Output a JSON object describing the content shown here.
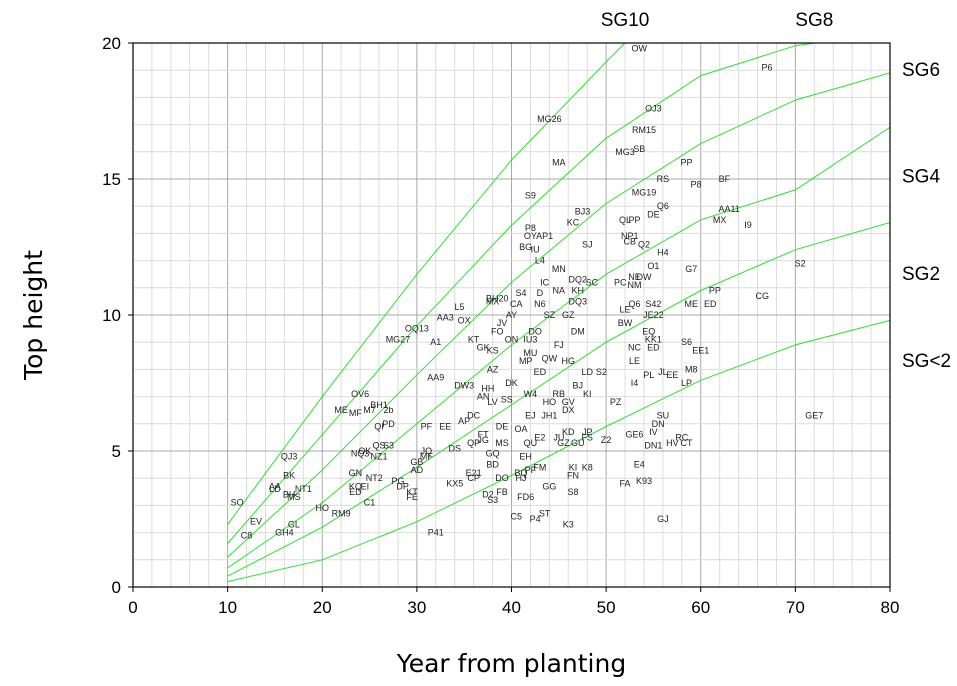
{
  "chart_data": {
    "type": "scatter",
    "xlabel": "Year from planting",
    "ylabel": "Top height",
    "xlim": [
      0,
      80
    ],
    "ylim": [
      0,
      20
    ],
    "x_ticks": [
      "0",
      "10",
      "20",
      "30",
      "40",
      "50",
      "60",
      "70",
      "80"
    ],
    "y_ticks": [
      "0",
      "5",
      "10",
      "15",
      "20"
    ],
    "grid": true,
    "series_color": "#33dd33",
    "curves": [
      {
        "name": "SG10",
        "points": [
          [
            10,
            2.3
          ],
          [
            20,
            7.0
          ],
          [
            30,
            11.5
          ],
          [
            40,
            15.7
          ],
          [
            50,
            19.3
          ],
          [
            52,
            20
          ]
        ]
      },
      {
        "name": "SG8",
        "points": [
          [
            10,
            1.6
          ],
          [
            20,
            5.6
          ],
          [
            30,
            9.6
          ],
          [
            40,
            13.3
          ],
          [
            50,
            16.5
          ],
          [
            60,
            18.8
          ],
          [
            70,
            19.9
          ],
          [
            72,
            20
          ]
        ]
      },
      {
        "name": "SG6",
        "points": [
          [
            10,
            1.1
          ],
          [
            20,
            4.3
          ],
          [
            30,
            7.8
          ],
          [
            40,
            11.2
          ],
          [
            50,
            14.1
          ],
          [
            60,
            16.3
          ],
          [
            70,
            17.9
          ],
          [
            80,
            18.9
          ]
        ]
      },
      {
        "name": "SG4",
        "points": [
          [
            10,
            0.7
          ],
          [
            20,
            3.1
          ],
          [
            30,
            6.0
          ],
          [
            40,
            8.9
          ],
          [
            50,
            11.5
          ],
          [
            60,
            13.5
          ],
          [
            70,
            14.6
          ],
          [
            80,
            16.9
          ]
        ]
      },
      {
        "name": "SG2",
        "points": [
          [
            10,
            0.4
          ],
          [
            20,
            2.2
          ],
          [
            30,
            4.4
          ],
          [
            40,
            6.7
          ],
          [
            50,
            9.0
          ],
          [
            60,
            10.9
          ],
          [
            70,
            12.4
          ],
          [
            80,
            13.4
          ]
        ]
      },
      {
        "name": "SG<2",
        "points": [
          [
            10,
            0.2
          ],
          [
            20,
            1.0
          ],
          [
            30,
            2.4
          ],
          [
            40,
            4.1
          ],
          [
            50,
            5.9
          ],
          [
            60,
            7.6
          ],
          [
            70,
            8.9
          ],
          [
            80,
            9.8
          ]
        ]
      }
    ],
    "points": [
      {
        "label": "OW",
        "x": 53.5,
        "y": 19.8
      },
      {
        "label": "P6",
        "x": 67,
        "y": 19.1
      },
      {
        "label": "OJ3",
        "x": 55,
        "y": 17.6
      },
      {
        "label": "RM15",
        "x": 54,
        "y": 16.8
      },
      {
        "label": "MG26",
        "x": 44,
        "y": 17.2
      },
      {
        "label": "MG3",
        "x": 52,
        "y": 16.0
      },
      {
        "label": "SB",
        "x": 53.5,
        "y": 16.1
      },
      {
        "label": "MA",
        "x": 45,
        "y": 15.6
      },
      {
        "label": "PP",
        "x": 58.5,
        "y": 15.6
      },
      {
        "label": "RS",
        "x": 56,
        "y": 15.0
      },
      {
        "label": "P8",
        "x": 59.5,
        "y": 14.8
      },
      {
        "label": "BF",
        "x": 62.5,
        "y": 15.0
      },
      {
        "label": "MG19",
        "x": 54,
        "y": 14.5
      },
      {
        "label": "S9",
        "x": 42,
        "y": 14.4
      },
      {
        "label": "AA11",
        "x": 63,
        "y": 13.9
      },
      {
        "label": "Q6",
        "x": 56,
        "y": 14.0
      },
      {
        "label": "DE",
        "x": 55,
        "y": 13.7
      },
      {
        "label": "BJ3",
        "x": 47.5,
        "y": 13.8
      },
      {
        "label": "KC",
        "x": 46.5,
        "y": 13.4
      },
      {
        "label": "QL",
        "x": 52,
        "y": 13.5
      },
      {
        "label": "PP",
        "x": 53,
        "y": 13.5
      },
      {
        "label": "MX",
        "x": 62,
        "y": 13.5
      },
      {
        "label": "I9",
        "x": 65,
        "y": 13.3
      },
      {
        "label": "P8",
        "x": 42,
        "y": 13.2
      },
      {
        "label": "OY",
        "x": 42,
        "y": 12.9
      },
      {
        "label": "AP1",
        "x": 43.5,
        "y": 12.9
      },
      {
        "label": "NP1",
        "x": 52.5,
        "y": 12.9
      },
      {
        "label": "SJ",
        "x": 48,
        "y": 12.6
      },
      {
        "label": "CB",
        "x": 52.5,
        "y": 12.7
      },
      {
        "label": "Q2",
        "x": 54,
        "y": 12.6
      },
      {
        "label": "BG",
        "x": 41.5,
        "y": 12.5
      },
      {
        "label": "IU",
        "x": 42.5,
        "y": 12.4
      },
      {
        "label": "H4",
        "x": 56,
        "y": 12.3
      },
      {
        "label": "L4",
        "x": 43,
        "y": 12.0
      },
      {
        "label": "O1",
        "x": 55,
        "y": 11.8
      },
      {
        "label": "MN",
        "x": 45,
        "y": 11.7
      },
      {
        "label": "G7",
        "x": 59,
        "y": 11.7
      },
      {
        "label": "S2",
        "x": 70.5,
        "y": 11.9
      },
      {
        "label": "NE",
        "x": 53,
        "y": 11.4
      },
      {
        "label": "DW",
        "x": 54,
        "y": 11.4
      },
      {
        "label": "DQ2",
        "x": 47,
        "y": 11.3
      },
      {
        "label": "SC",
        "x": 48.5,
        "y": 11.2
      },
      {
        "label": "PC",
        "x": 51.5,
        "y": 11.2
      },
      {
        "label": "NM",
        "x": 53,
        "y": 11.1
      },
      {
        "label": "IC",
        "x": 43.5,
        "y": 11.2
      },
      {
        "label": "NA",
        "x": 45,
        "y": 10.9
      },
      {
        "label": "KH",
        "x": 47,
        "y": 10.9
      },
      {
        "label": "S4",
        "x": 41,
        "y": 10.8
      },
      {
        "label": "D",
        "x": 43,
        "y": 10.8
      },
      {
        "label": "PP",
        "x": 61.5,
        "y": 10.9
      },
      {
        "label": "CG",
        "x": 66.5,
        "y": 10.7
      },
      {
        "label": "BH20",
        "x": 38.5,
        "y": 10.6
      },
      {
        "label": "DQ3",
        "x": 47,
        "y": 10.5
      },
      {
        "label": "Q6",
        "x": 53,
        "y": 10.4
      },
      {
        "label": "S42",
        "x": 55,
        "y": 10.4
      },
      {
        "label": "ME",
        "x": 59,
        "y": 10.4
      },
      {
        "label": "ED",
        "x": 61,
        "y": 10.4
      },
      {
        "label": "L5",
        "x": 34.5,
        "y": 10.3
      },
      {
        "label": "MX",
        "x": 38,
        "y": 10.5
      },
      {
        "label": "CA",
        "x": 40.5,
        "y": 10.4
      },
      {
        "label": "N6",
        "x": 43,
        "y": 10.4
      },
      {
        "label": "LE",
        "x": 52,
        "y": 10.2
      },
      {
        "label": "AA3",
        "x": 33,
        "y": 9.9
      },
      {
        "label": "OX",
        "x": 35,
        "y": 9.8
      },
      {
        "label": "AY",
        "x": 40,
        "y": 10.0
      },
      {
        "label": "SZ",
        "x": 44,
        "y": 10.0
      },
      {
        "label": "GZ",
        "x": 46,
        "y": 10.0
      },
      {
        "label": "JE22",
        "x": 55,
        "y": 10.0
      },
      {
        "label": "JV",
        "x": 39,
        "y": 9.7
      },
      {
        "label": "BW",
        "x": 52,
        "y": 9.7
      },
      {
        "label": "OQ13",
        "x": 30,
        "y": 9.5
      },
      {
        "label": "FO",
        "x": 38.5,
        "y": 9.4
      },
      {
        "label": "DO",
        "x": 42.5,
        "y": 9.4
      },
      {
        "label": "DM",
        "x": 47,
        "y": 9.4
      },
      {
        "label": "EQ",
        "x": 54.5,
        "y": 9.4
      },
      {
        "label": "MG27",
        "x": 28,
        "y": 9.1
      },
      {
        "label": "A1",
        "x": 32,
        "y": 9.0
      },
      {
        "label": "KT",
        "x": 36,
        "y": 9.1
      },
      {
        "label": "ON",
        "x": 40,
        "y": 9.1
      },
      {
        "label": "IU3",
        "x": 42,
        "y": 9.1
      },
      {
        "label": "FJ",
        "x": 45,
        "y": 8.9
      },
      {
        "label": "KK1",
        "x": 55,
        "y": 9.1
      },
      {
        "label": "S6",
        "x": 58.5,
        "y": 9.0
      },
      {
        "label": "GK",
        "x": 37,
        "y": 8.8
      },
      {
        "label": "KS",
        "x": 38,
        "y": 8.7
      },
      {
        "label": "MU",
        "x": 42,
        "y": 8.6
      },
      {
        "label": "NC",
        "x": 53,
        "y": 8.8
      },
      {
        "label": "ED",
        "x": 55,
        "y": 8.8
      },
      {
        "label": "EE1",
        "x": 60,
        "y": 8.7
      },
      {
        "label": "MP",
        "x": 41.5,
        "y": 8.3
      },
      {
        "label": "QW",
        "x": 44,
        "y": 8.4
      },
      {
        "label": "HG",
        "x": 46,
        "y": 8.3
      },
      {
        "label": "LE",
        "x": 53,
        "y": 8.3
      },
      {
        "label": "M8",
        "x": 59,
        "y": 8.0
      },
      {
        "label": "AA9",
        "x": 32,
        "y": 7.7
      },
      {
        "label": "AZ",
        "x": 38,
        "y": 8.0
      },
      {
        "label": "ED",
        "x": 43,
        "y": 7.9
      },
      {
        "label": "LD",
        "x": 48,
        "y": 7.9
      },
      {
        "label": "S2",
        "x": 49.5,
        "y": 7.9
      },
      {
        "label": "PL",
        "x": 54.5,
        "y": 7.8
      },
      {
        "label": "JL",
        "x": 56,
        "y": 7.9
      },
      {
        "label": "EE",
        "x": 57,
        "y": 7.8
      },
      {
        "label": "I4",
        "x": 53,
        "y": 7.5
      },
      {
        "label": "LP",
        "x": 58.5,
        "y": 7.5
      },
      {
        "label": "DW3",
        "x": 35,
        "y": 7.4
      },
      {
        "label": "HH",
        "x": 37.5,
        "y": 7.3
      },
      {
        "label": "DK",
        "x": 40,
        "y": 7.5
      },
      {
        "label": "BJ",
        "x": 47,
        "y": 7.4
      },
      {
        "label": "KI",
        "x": 48,
        "y": 7.1
      },
      {
        "label": "BH1",
        "x": 26,
        "y": 6.7
      },
      {
        "label": "OV6",
        "x": 24,
        "y": 7.1
      },
      {
        "label": "AN",
        "x": 37,
        "y": 7.0
      },
      {
        "label": "RB",
        "x": 45,
        "y": 7.1
      },
      {
        "label": "W4",
        "x": 42,
        "y": 7.1
      },
      {
        "label": "LV",
        "x": 38,
        "y": 6.8
      },
      {
        "label": "SS",
        "x": 39.5,
        "y": 6.9
      },
      {
        "label": "HO",
        "x": 44,
        "y": 6.8
      },
      {
        "label": "GV",
        "x": 46,
        "y": 6.8
      },
      {
        "label": "PZ",
        "x": 51,
        "y": 6.8
      },
      {
        "label": "ME",
        "x": 22,
        "y": 6.5
      },
      {
        "label": "MF",
        "x": 23.5,
        "y": 6.4
      },
      {
        "label": "M7",
        "x": 25,
        "y": 6.5
      },
      {
        "label": "2b",
        "x": 27,
        "y": 6.5
      },
      {
        "label": "DX",
        "x": 46,
        "y": 6.5
      },
      {
        "label": "DC",
        "x": 36,
        "y": 6.3
      },
      {
        "label": "AP",
        "x": 35,
        "y": 6.1
      },
      {
        "label": "EJ",
        "x": 42,
        "y": 6.3
      },
      {
        "label": "JH1",
        "x": 44,
        "y": 6.3
      },
      {
        "label": "SU",
        "x": 56,
        "y": 6.3
      },
      {
        "label": "GE7",
        "x": 72,
        "y": 6.3
      },
      {
        "label": "PD",
        "x": 27,
        "y": 6.0
      },
      {
        "label": "QI",
        "x": 26,
        "y": 5.9
      },
      {
        "label": "PF",
        "x": 31,
        "y": 5.9
      },
      {
        "label": "EE",
        "x": 33,
        "y": 5.9
      },
      {
        "label": "DE",
        "x": 39,
        "y": 5.9
      },
      {
        "label": "OA",
        "x": 41,
        "y": 5.8
      },
      {
        "label": "DN",
        "x": 55.5,
        "y": 6.0
      },
      {
        "label": "KD",
        "x": 46,
        "y": 5.7
      },
      {
        "label": "JP",
        "x": 48,
        "y": 5.7
      },
      {
        "label": "GE6",
        "x": 53,
        "y": 5.6
      },
      {
        "label": "IV",
        "x": 55,
        "y": 5.7
      },
      {
        "label": "FT",
        "x": 37,
        "y": 5.6
      },
      {
        "label": "E2",
        "x": 43,
        "y": 5.5
      },
      {
        "label": "JU",
        "x": 45,
        "y": 5.5
      },
      {
        "label": "FS",
        "x": 48,
        "y": 5.5
      },
      {
        "label": "Z2",
        "x": 50,
        "y": 5.4
      },
      {
        "label": "RC",
        "x": 58,
        "y": 5.5
      },
      {
        "label": "DN1",
        "x": 55,
        "y": 5.2
      },
      {
        "label": "HV",
        "x": 57,
        "y": 5.3
      },
      {
        "label": "CT",
        "x": 58.5,
        "y": 5.3
      },
      {
        "label": "QP",
        "x": 36,
        "y": 5.3
      },
      {
        "label": "JG",
        "x": 37,
        "y": 5.4
      },
      {
        "label": "MS",
        "x": 39,
        "y": 5.3
      },
      {
        "label": "QU",
        "x": 42,
        "y": 5.3
      },
      {
        "label": "GZ",
        "x": 45.5,
        "y": 5.3
      },
      {
        "label": "GU",
        "x": 47,
        "y": 5.3
      },
      {
        "label": "DS",
        "x": 34,
        "y": 5.1
      },
      {
        "label": "JQ",
        "x": 31,
        "y": 5.0
      },
      {
        "label": "QS",
        "x": 26,
        "y": 5.2
      },
      {
        "label": "S3",
        "x": 27,
        "y": 5.2
      },
      {
        "label": "OK",
        "x": 24.5,
        "y": 5.0
      },
      {
        "label": "NZ1",
        "x": 26,
        "y": 4.8
      },
      {
        "label": "NQ3",
        "x": 24,
        "y": 4.9
      },
      {
        "label": "QJ3",
        "x": 16.5,
        "y": 4.8
      },
      {
        "label": "MF",
        "x": 31,
        "y": 4.8
      },
      {
        "label": "GQ",
        "x": 38,
        "y": 4.9
      },
      {
        "label": "EH",
        "x": 41.5,
        "y": 4.8
      },
      {
        "label": "GB",
        "x": 30,
        "y": 4.6
      },
      {
        "label": "AD",
        "x": 30,
        "y": 4.3
      },
      {
        "label": "BD",
        "x": 38,
        "y": 4.5
      },
      {
        "label": "FM",
        "x": 43,
        "y": 4.4
      },
      {
        "label": "BQ",
        "x": 41,
        "y": 4.2
      },
      {
        "label": "PF",
        "x": 42,
        "y": 4.3
      },
      {
        "label": "KI",
        "x": 46.5,
        "y": 4.4
      },
      {
        "label": "K8",
        "x": 48,
        "y": 4.4
      },
      {
        "label": "E4",
        "x": 53.5,
        "y": 4.5
      },
      {
        "label": "E21",
        "x": 36,
        "y": 4.2
      },
      {
        "label": "FN",
        "x": 46.5,
        "y": 4.1
      },
      {
        "label": "BK",
        "x": 16.5,
        "y": 4.1
      },
      {
        "label": "GN",
        "x": 23.5,
        "y": 4.2
      },
      {
        "label": "NT2",
        "x": 25.5,
        "y": 4.0
      },
      {
        "label": "DO",
        "x": 39,
        "y": 4.0
      },
      {
        "label": "HJ",
        "x": 41,
        "y": 4.0
      },
      {
        "label": "CP",
        "x": 36,
        "y": 4.0
      },
      {
        "label": "KX5",
        "x": 34,
        "y": 3.8
      },
      {
        "label": "FA",
        "x": 52,
        "y": 3.8
      },
      {
        "label": "K93",
        "x": 54,
        "y": 3.9
      },
      {
        "label": "PG",
        "x": 28,
        "y": 3.9
      },
      {
        "label": "DP",
        "x": 28.5,
        "y": 3.7
      },
      {
        "label": "GG",
        "x": 44,
        "y": 3.7
      },
      {
        "label": "KQ",
        "x": 23.5,
        "y": 3.7
      },
      {
        "label": "EI",
        "x": 24.5,
        "y": 3.7
      },
      {
        "label": "ED",
        "x": 23.5,
        "y": 3.5
      },
      {
        "label": "AA",
        "x": 15,
        "y": 3.7
      },
      {
        "label": "LD",
        "x": 15,
        "y": 3.6
      },
      {
        "label": "NT1",
        "x": 18,
        "y": 3.6
      },
      {
        "label": "BH",
        "x": 16.5,
        "y": 3.4
      },
      {
        "label": "MS",
        "x": 17,
        "y": 3.3
      },
      {
        "label": "KT",
        "x": 29.5,
        "y": 3.5
      },
      {
        "label": "FE",
        "x": 29.5,
        "y": 3.3
      },
      {
        "label": "FB",
        "x": 39,
        "y": 3.5
      },
      {
        "label": "D2",
        "x": 37.5,
        "y": 3.4
      },
      {
        "label": "S3",
        "x": 38,
        "y": 3.2
      },
      {
        "label": "FD6",
        "x": 41.5,
        "y": 3.3
      },
      {
        "label": "S8",
        "x": 46.5,
        "y": 3.5
      },
      {
        "label": "C1",
        "x": 25,
        "y": 3.1
      },
      {
        "label": "SO",
        "x": 11,
        "y": 3.1
      },
      {
        "label": "HO",
        "x": 20,
        "y": 2.9
      },
      {
        "label": "RM9",
        "x": 22,
        "y": 2.7
      },
      {
        "label": "C5",
        "x": 40.5,
        "y": 2.6
      },
      {
        "label": "ST",
        "x": 43.5,
        "y": 2.7
      },
      {
        "label": "P4",
        "x": 42.5,
        "y": 2.5
      },
      {
        "label": "GJ",
        "x": 56,
        "y": 2.5
      },
      {
        "label": "EV",
        "x": 13,
        "y": 2.4
      },
      {
        "label": "GL",
        "x": 17,
        "y": 2.3
      },
      {
        "label": "K3",
        "x": 46,
        "y": 2.3
      },
      {
        "label": "C8",
        "x": 12,
        "y": 1.9
      },
      {
        "label": "GH4",
        "x": 16,
        "y": 2.0
      },
      {
        "label": "P41",
        "x": 32,
        "y": 2.0
      }
    ]
  }
}
